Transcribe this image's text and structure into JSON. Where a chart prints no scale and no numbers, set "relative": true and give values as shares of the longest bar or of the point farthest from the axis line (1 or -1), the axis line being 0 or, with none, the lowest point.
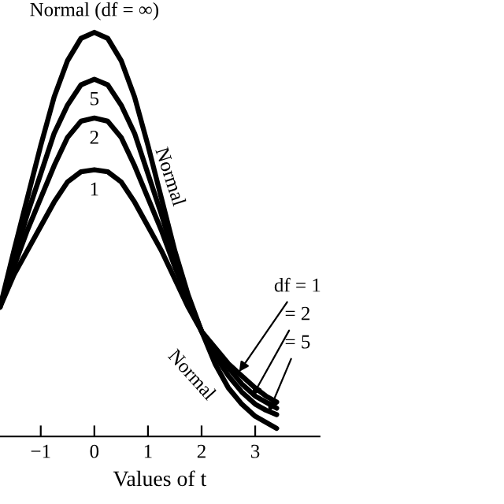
{
  "chart_data": {
    "type": "line",
    "relative": true,
    "xlabel": "Values of t",
    "x": [
      -1.76,
      -1.5,
      -1.25,
      -1,
      -0.75,
      -0.5,
      -0.25,
      0,
      0.25,
      0.5,
      0.75,
      1,
      1.25,
      1.5,
      1.75,
      2,
      2.25,
      2.5,
      2.75,
      3,
      3.2,
      3.4
    ],
    "xlim": [
      -1.76,
      4.2
    ],
    "xticks": [
      {
        "value": -1,
        "label": "−1"
      },
      0,
      1,
      2,
      3
    ],
    "series": [
      {
        "name": "Normal (df = ∞)",
        "color": "#000000",
        "values": [
          0.32,
          0.46,
          0.59,
          0.72,
          0.84,
          0.93,
          0.985,
          1,
          0.985,
          0.93,
          0.84,
          0.72,
          0.59,
          0.46,
          0.35,
          0.26,
          0.18,
          0.12,
          0.08,
          0.05,
          0.035,
          0.02
        ]
      },
      {
        "name": "5",
        "color": "#000000",
        "values": [
          0.32,
          0.44,
          0.55,
          0.65,
          0.75,
          0.82,
          0.87,
          0.884,
          0.87,
          0.82,
          0.75,
          0.65,
          0.55,
          0.44,
          0.34,
          0.26,
          0.2,
          0.15,
          0.11,
          0.08,
          0.065,
          0.054
        ]
      },
      {
        "name": "2",
        "color": "#000000",
        "values": [
          0.32,
          0.42,
          0.51,
          0.59,
          0.67,
          0.74,
          0.78,
          0.788,
          0.78,
          0.74,
          0.67,
          0.59,
          0.51,
          0.42,
          0.34,
          0.26,
          0.21,
          0.17,
          0.13,
          0.1,
          0.085,
          0.07
        ]
      },
      {
        "name": "1",
        "color": "#000000",
        "values": [
          0.32,
          0.4,
          0.46,
          0.52,
          0.58,
          0.63,
          0.655,
          0.66,
          0.655,
          0.63,
          0.58,
          0.52,
          0.46,
          0.39,
          0.32,
          0.26,
          0.22,
          0.18,
          0.15,
          0.12,
          0.1,
          0.085
        ]
      }
    ],
    "annotations": [
      "Normal",
      {
        "text": "df = 1",
        "x": 2.7,
        "y": 0.16
      },
      {
        "text": "= 2",
        "x": 2.95,
        "y": 0.1
      },
      {
        "text": "= 5",
        "x": 3.25,
        "y": 0.06
      },
      {
        "text": "Normal",
        "x": 2.3,
        "y": 0.12
      }
    ],
    "grid": false,
    "legend": false,
    "marker": "none",
    "line_style": "solid"
  }
}
